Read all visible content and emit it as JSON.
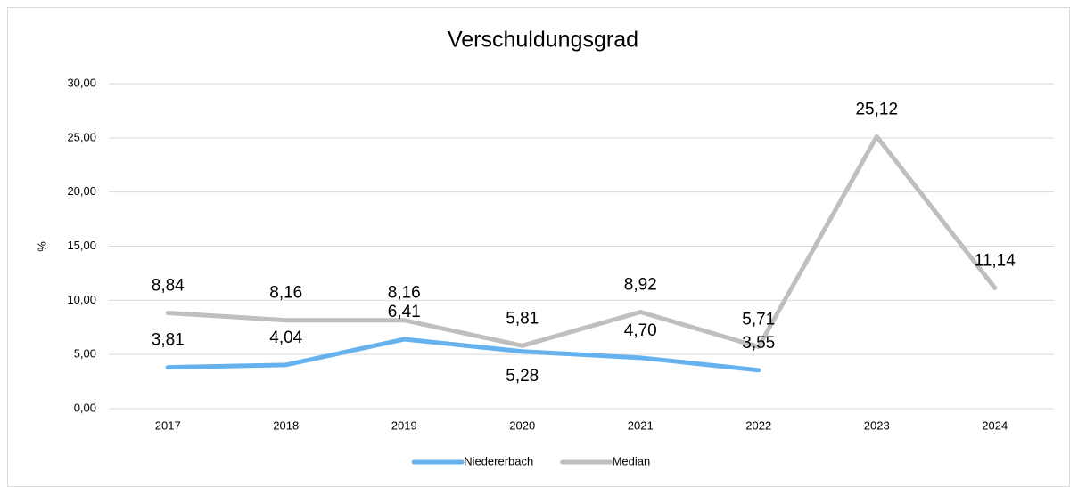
{
  "chart_data": {
    "type": "line",
    "title": "Verschuldungsgrad",
    "y_label": "%",
    "categories": [
      "2017",
      "2018",
      "2019",
      "2020",
      "2021",
      "2022",
      "2023",
      "2024"
    ],
    "series": [
      {
        "name": "Niedererbach",
        "color": "#66b2ee",
        "values": [
          3.81,
          4.04,
          6.41,
          5.28,
          4.7,
          3.55,
          null,
          null
        ],
        "value_labels": [
          "3,81",
          "4,04",
          "6,41",
          "5,28",
          "4,70",
          "3,55",
          null,
          null
        ]
      },
      {
        "name": "Median",
        "color": "#bfbfbf",
        "values": [
          8.84,
          8.16,
          8.16,
          5.81,
          8.92,
          5.71,
          25.12,
          11.14
        ],
        "value_labels": [
          "8,84",
          "8,16",
          "8,16",
          "5,81",
          "8,92",
          "5,71",
          "25,12",
          "11,14"
        ]
      }
    ],
    "ylim": [
      0,
      30
    ],
    "yticks": [
      {
        "value": 0,
        "label": "0,00"
      },
      {
        "value": 5,
        "label": "5,00"
      },
      {
        "value": 10,
        "label": "10,00"
      },
      {
        "value": 15,
        "label": "15,00"
      },
      {
        "value": 20,
        "label": "20,00"
      },
      {
        "value": 25,
        "label": "25,00"
      },
      {
        "value": 30,
        "label": "30,00"
      }
    ],
    "grid": true,
    "legend": "bottom"
  }
}
